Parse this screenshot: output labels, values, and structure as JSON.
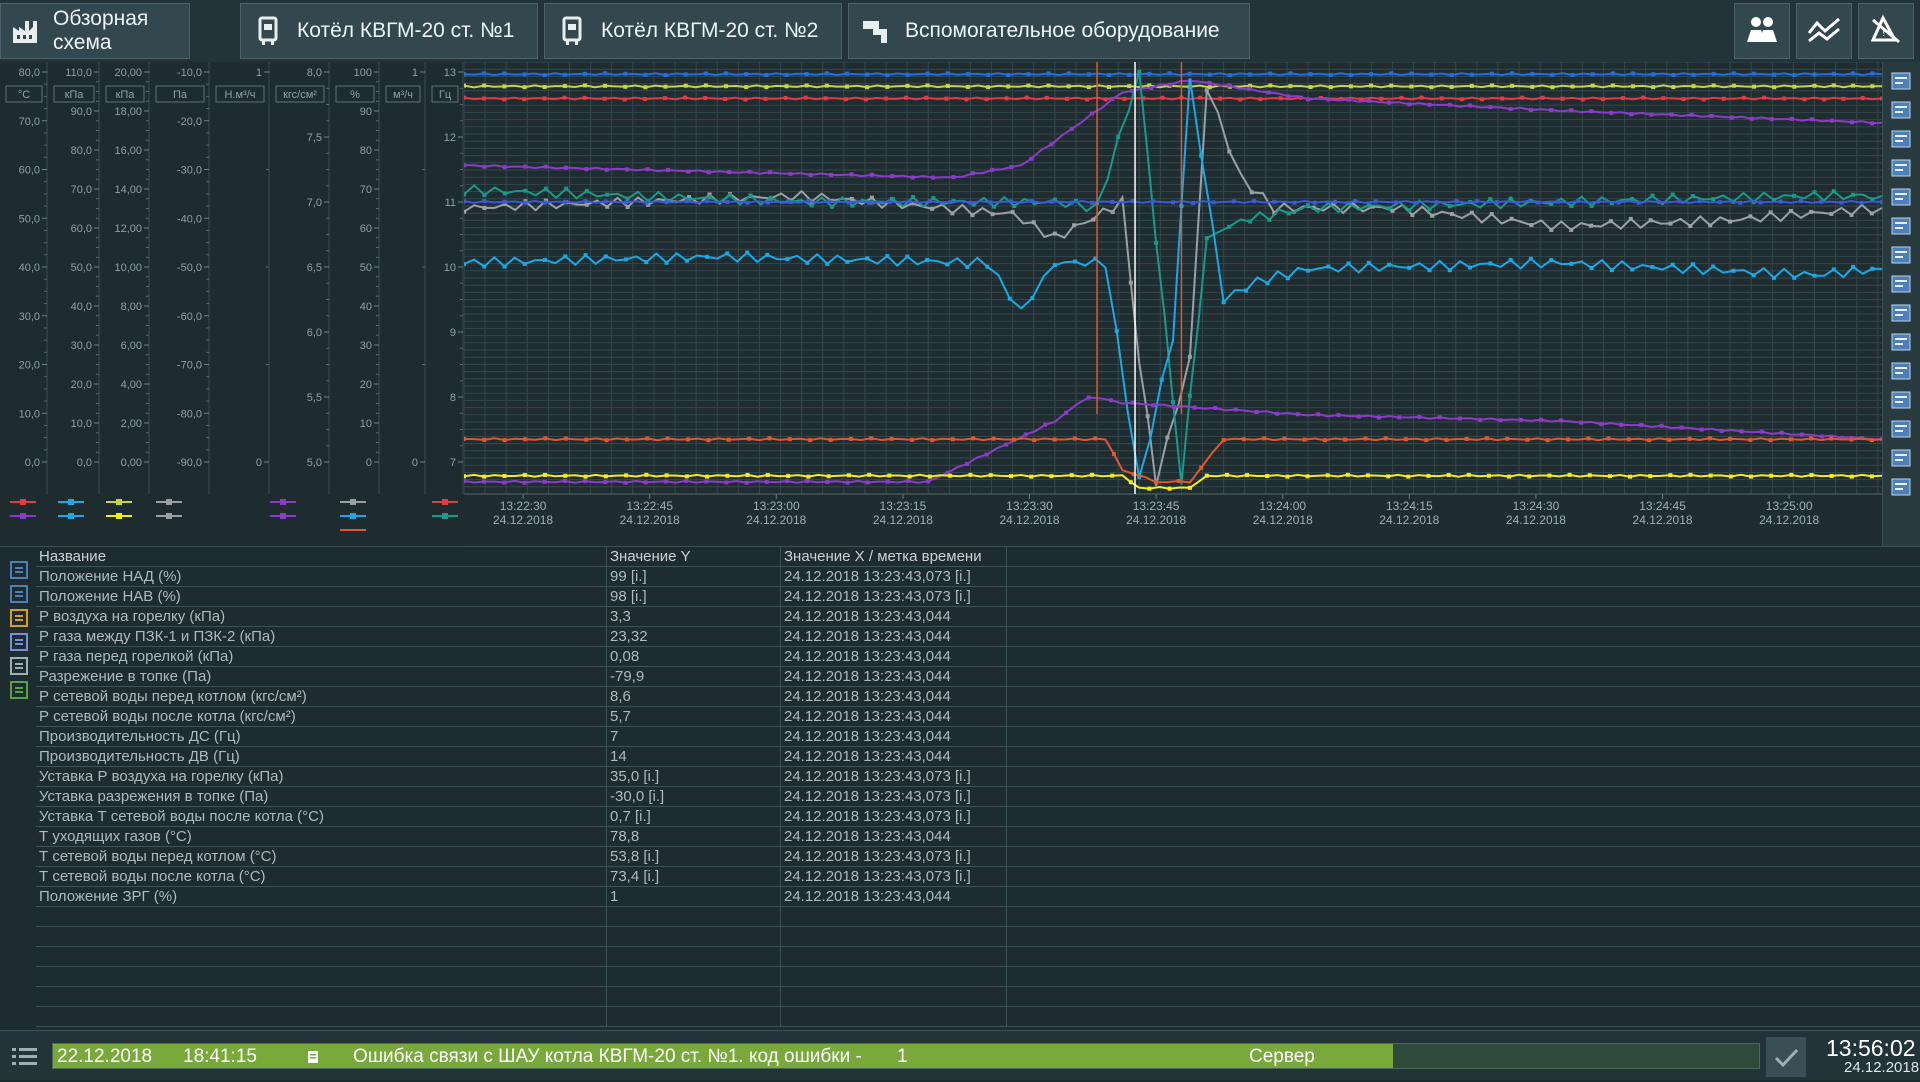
{
  "nav": {
    "tabs": [
      {
        "label": "Обзорная схема",
        "icon": "factory-icon"
      },
      {
        "label": "Котёл КВГМ-20 ст. №1",
        "icon": "boiler-icon"
      },
      {
        "label": "Котёл КВГМ-20 ст. №2",
        "icon": "boiler-icon"
      },
      {
        "label": "Вспомогательное оборудование",
        "icon": "pump-icon"
      }
    ],
    "right_icons": [
      "operators-icon",
      "trend-icon",
      "alarm-ack-icon"
    ]
  },
  "axes": [
    {
      "unit": "°C",
      "ticks": [
        "80,0",
        "70,0",
        "60,0",
        "50,0",
        "40,0",
        "30,0",
        "20,0",
        "10,0",
        "0,0"
      ]
    },
    {
      "unit": "кПа",
      "ticks": [
        "110,0",
        "90,0",
        "80,0",
        "70,0",
        "60,0",
        "50,0",
        "40,0",
        "30,0",
        "20,0",
        "10,0",
        "0,0"
      ]
    },
    {
      "unit": "кПа",
      "ticks": [
        "20,00",
        "18,00",
        "16,00",
        "14,00",
        "12,00",
        "10,00",
        "8,00",
        "6,00",
        "4,00",
        "2,00",
        "0,00"
      ]
    },
    {
      "unit": "Па",
      "ticks": [
        "-10,0",
        "-20,0",
        "-30,0",
        "-40,0",
        "-50,0",
        "-60,0",
        "-70,0",
        "-80,0",
        "-90,0"
      ]
    },
    {
      "unit": "Н.м³/ч",
      "ticks": [
        "1",
        "0"
      ]
    },
    {
      "unit": "кгс/см²",
      "ticks": [
        "8,0",
        "7,5",
        "7,0",
        "6,5",
        "6,0",
        "5,5",
        "5,0"
      ]
    },
    {
      "unit": "%",
      "ticks": [
        "100",
        "90",
        "80",
        "70",
        "60",
        "50",
        "40",
        "30",
        "20",
        "10",
        "0"
      ]
    },
    {
      "unit": "м³/ч",
      "ticks": [
        "1",
        "0"
      ]
    },
    {
      "unit": "Гц",
      "ticks": [
        "13",
        "12",
        "11",
        "10",
        "9",
        "8",
        "7"
      ]
    }
  ],
  "chart_data": {
    "type": "line",
    "x_ticks": [
      {
        "time": "13:22:30",
        "date": "24.12.2018"
      },
      {
        "time": "13:22:45",
        "date": "24.12.2018"
      },
      {
        "time": "13:23:00",
        "date": "24.12.2018"
      },
      {
        "time": "13:23:15",
        "date": "24.12.2018"
      },
      {
        "time": "13:23:30",
        "date": "24.12.2018"
      },
      {
        "time": "13:23:45",
        "date": "24.12.2018"
      },
      {
        "time": "13:24:00",
        "date": "24.12.2018"
      },
      {
        "time": "13:24:15",
        "date": "24.12.2018"
      },
      {
        "time": "13:24:30",
        "date": "24.12.2018"
      },
      {
        "time": "13:24:45",
        "date": "24.12.2018"
      },
      {
        "time": "13:25:00",
        "date": "24.12.2018"
      }
    ],
    "x_unit": "s since 13:22:23",
    "x_range": [
      0,
      168
    ],
    "y_range_hz": [
      6.8,
      13.9
    ],
    "grid": true,
    "series": [
      {
        "color": "#1f6fe0",
        "x": [
          0,
          80,
          160,
          168
        ],
        "y": [
          13.7,
          13.7,
          13.7,
          13.7
        ]
      },
      {
        "color": "#c7d63a",
        "x": [
          0,
          80,
          160,
          168
        ],
        "y": [
          13.5,
          13.5,
          13.5,
          13.5
        ]
      },
      {
        "color": "#e63946",
        "x": [
          0,
          75,
          76,
          85,
          86,
          160,
          168
        ],
        "y": [
          13.3,
          13.3,
          13.3,
          13.3,
          13.3,
          13.3,
          13.3
        ]
      },
      {
        "color": "#8a3cc8",
        "x": [
          0,
          58,
          66,
          78,
          86,
          100,
          130,
          168
        ],
        "y": [
          12.2,
          12.0,
          12.2,
          13.4,
          13.6,
          13.3,
          13.1,
          12.9
        ]
      },
      {
        "color": "#9aa0a3",
        "x": [
          0,
          40,
          65,
          70,
          78,
          80,
          82,
          86,
          88,
          92,
          96,
          110,
          130,
          150,
          168
        ],
        "y": [
          11.5,
          11.7,
          11.4,
          11.0,
          11.6,
          9.0,
          7.0,
          9.0,
          13.5,
          12.0,
          11.5,
          11.5,
          11.2,
          11.3,
          11.5
        ]
      },
      {
        "color": "#179a8a",
        "x": [
          0,
          40,
          70,
          75,
          80,
          82,
          85,
          88,
          92,
          100,
          130,
          160,
          168
        ],
        "y": [
          11.8,
          11.6,
          11.6,
          11.5,
          13.7,
          11.0,
          7.0,
          11.0,
          11.3,
          11.5,
          11.6,
          11.7,
          11.7
        ]
      },
      {
        "color": "#1aa8e6",
        "x": [
          0,
          30,
          62,
          66,
          70,
          76,
          80,
          84,
          86,
          90,
          94,
          100,
          130,
          160,
          168
        ],
        "y": [
          10.6,
          10.7,
          10.6,
          9.8,
          10.6,
          10.6,
          7.0,
          9.4,
          13.6,
          10.0,
          10.3,
          10.5,
          10.6,
          10.4,
          10.5
        ]
      },
      {
        "color": "#3a5ad8",
        "x": [
          0,
          168
        ],
        "y": [
          11.6,
          11.6
        ]
      },
      {
        "color": "#8a3cc8",
        "x": [
          0,
          55,
          70,
          74,
          78,
          100,
          130,
          168
        ],
        "y": [
          7.0,
          7.0,
          8.0,
          8.4,
          8.3,
          8.1,
          8.0,
          7.7
        ]
      },
      {
        "color": "#e2572b",
        "x": [
          0,
          76,
          78,
          82,
          86,
          90,
          168
        ],
        "y": [
          7.7,
          7.7,
          7.2,
          7.0,
          7.0,
          7.7,
          7.7
        ]
      },
      {
        "color": "#f2ee1e",
        "x": [
          0,
          78,
          80,
          86,
          88,
          168
        ],
        "y": [
          7.1,
          7.1,
          6.9,
          6.9,
          7.1,
          7.1
        ]
      }
    ]
  },
  "chart_toolbar_icons": [
    "calendar-icon",
    "rewind-icon",
    "forward-icon",
    "zoom-in-icon",
    "zoom-out-icon",
    "ruler-icon",
    "fit-icon",
    "grid-icon",
    "clock-icon",
    "export-icon",
    "import-icon",
    "pause-icon",
    "print-icon",
    "refresh-icon",
    "settings-icon"
  ],
  "table": {
    "headers": [
      "Название",
      "Значение Y",
      "Значение X / метка времени"
    ],
    "rows": [
      [
        "Положение НАД (%)",
        "99 [i.]",
        "24.12.2018 13:23:43,073 [i.]"
      ],
      [
        "Положение НАВ (%)",
        "98 [i.]",
        "24.12.2018 13:23:43,073 [i.]"
      ],
      [
        "Р воздуха на горелку (кПа)",
        "3,3",
        "24.12.2018 13:23:43,044"
      ],
      [
        "Р газа между ПЗК-1 и ПЗК-2 (кПа)",
        "23,32",
        "24.12.2018 13:23:43,044"
      ],
      [
        "Р газа перед горелкой (кПа)",
        "0,08",
        "24.12.2018 13:23:43,044"
      ],
      [
        "Разрежение в топке (Па)",
        "-79,9",
        "24.12.2018 13:23:43,044"
      ],
      [
        "Р сетевой воды перед котлом (кгс/см²)",
        "8,6",
        "24.12.2018 13:23:43,044"
      ],
      [
        "Р сетевой воды после котла (кгс/см²)",
        "5,7",
        "24.12.2018 13:23:43,044"
      ],
      [
        "Производительность ДС (Гц)",
        "7",
        "24.12.2018 13:23:43,044"
      ],
      [
        "Производительность ДВ (Гц)",
        "14",
        "24.12.2018 13:23:43,044"
      ],
      [
        "Уставка Р воздуха на горелку (кПа)",
        "35,0 [i.]",
        "24.12.2018 13:23:43,073 [i.]"
      ],
      [
        "Уставка разрежения в топке (Па)",
        "-30,0 [i.]",
        "24.12.2018 13:23:43,073 [i.]"
      ],
      [
        "Уставка Т сетевой воды после котла (°C)",
        "0,7 [i.]",
        "24.12.2018 13:23:43,073 [i.]"
      ],
      [
        "Т уходящих газов (°C)",
        "78,8",
        "24.12.2018 13:23:43,044"
      ],
      [
        "Т сетевой воды перед котлом (°C)",
        "53,8 [i.]",
        "24.12.2018 13:23:43,073 [i.]"
      ],
      [
        "Т сетевой воды после котла (°C)",
        "73,4 [i.]",
        "24.12.2018 13:23:43,073 [i.]"
      ],
      [
        "Положение ЗРГ (%)",
        "1",
        "24.12.2018 13:23:43,044"
      ]
    ],
    "empty_rows": 6,
    "tool_icons": [
      "table-settings-icon",
      "transfer-icon",
      "bracket-icon",
      "function-icon",
      "print-icon",
      "refresh-icon"
    ]
  },
  "status": {
    "date": "22.12.2018",
    "time": "18:41:15",
    "message": "Ошибка связи с ШАУ котла КВГМ-20 ст. №1. код ошибки -",
    "code": "1",
    "source": "Сервер",
    "clock_time": "13:56:02",
    "clock_date": "24.12.2018"
  }
}
